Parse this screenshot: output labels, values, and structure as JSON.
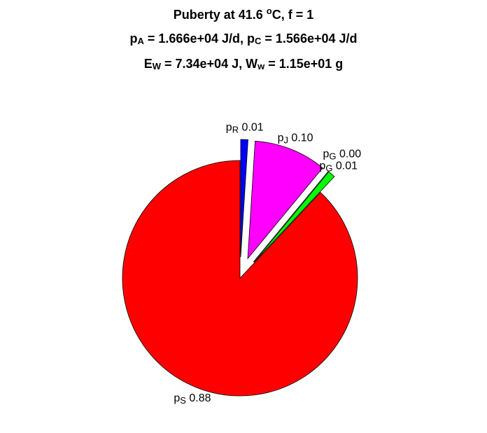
{
  "chart_data": {
    "type": "pie",
    "title": [
      [
        "Puberty at 41.6 ",
        {
          "sup": "o"
        },
        "C, f = 1"
      ],
      [
        "p",
        {
          "sub": "A"
        },
        " = 1.666e+04 J/d,  p",
        {
          "sub": "C"
        },
        " = 1.566e+04 J/d"
      ],
      [
        "E",
        {
          "sub": "W"
        },
        " = 7.34e+04 J, W",
        {
          "sub": "w"
        },
        " = 1.15e+01 g"
      ]
    ],
    "categories": [
      [
        "p",
        {
          "sub": "R"
        }
      ],
      [
        "p",
        {
          "sub": "J"
        }
      ],
      [
        "p",
        {
          "sub": "G"
        }
      ],
      [
        "p",
        {
          "sub": "G"
        }
      ],
      [
        "p",
        {
          "sub": "S"
        }
      ]
    ],
    "values": [
      0.01,
      0.1,
      0.0,
      0.01,
      0.88
    ],
    "value_labels": [
      "0.01",
      "0.10",
      "0.00",
      "0.01",
      "0.88"
    ],
    "colors": [
      "#0000ff",
      "#ff00ff",
      "#00ff00",
      "#00ff00",
      "#ff0000"
    ],
    "explode": [
      1,
      1,
      1,
      1,
      0
    ]
  }
}
